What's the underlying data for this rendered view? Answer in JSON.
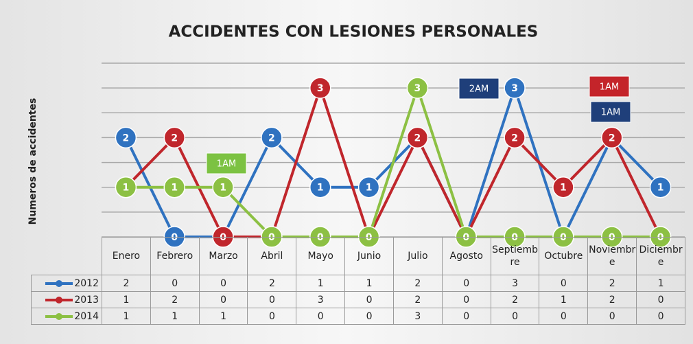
{
  "chart_data": {
    "type": "line",
    "title": "ACCIDENTES CON LESIONES PERSONALES",
    "y_label": "Numeros de accidentes",
    "categories": [
      "Enero",
      "Febrero",
      "Marzo",
      "Abril",
      "Mayo",
      "Junio",
      "Julio",
      "Agosto",
      "Septiembre",
      "Octubre",
      "Noviembre",
      "Diciembre"
    ],
    "series": [
      {
        "name": "2012",
        "color": "#2f72c0",
        "values": [
          2,
          0,
          0,
          2,
          1,
          1,
          2,
          0,
          3,
          0,
          2,
          1
        ]
      },
      {
        "name": "2013",
        "color": "#c0262c",
        "values": [
          1,
          2,
          0,
          0,
          3,
          0,
          2,
          0,
          2,
          1,
          2,
          0
        ]
      },
      {
        "name": "2014",
        "color": "#8cc043",
        "values": [
          1,
          1,
          1,
          0,
          0,
          0,
          3,
          0,
          0,
          0,
          0,
          0
        ]
      }
    ],
    "ylim": [
      0,
      3.5
    ],
    "yticks": [
      0,
      0.5,
      1,
      1.5,
      2,
      2.5,
      3,
      3.5
    ],
    "grid": true,
    "annotations": [
      {
        "text": "1AM",
        "color": "#7cc242"
      },
      {
        "text": "2AM",
        "color": "#1f3f7a"
      },
      {
        "text": "1AM",
        "color": "#c4242a"
      },
      {
        "text": "1AM",
        "color": "#1f3f7a"
      }
    ]
  }
}
